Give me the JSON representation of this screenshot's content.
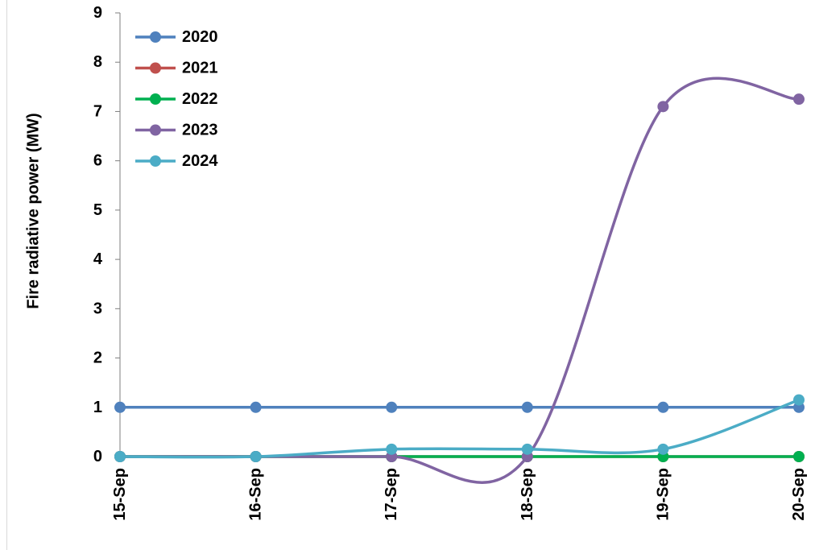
{
  "chart_data": {
    "type": "line",
    "title": "",
    "xlabel": "",
    "ylabel": "Fire radiative power (MW)",
    "categories": [
      "15-Sep",
      "16-Sep",
      "17-Sep",
      "18-Sep",
      "19-Sep",
      "20-Sep"
    ],
    "ylim": [
      0,
      9
    ],
    "yticks": [
      0,
      1,
      2,
      3,
      4,
      5,
      6,
      7,
      8,
      9
    ],
    "grid": false,
    "legend_position": "top-left",
    "smooth": true,
    "series": [
      {
        "name": "2020",
        "color": "#4f81bd",
        "values": [
          1,
          1,
          1,
          1,
          1,
          1
        ]
      },
      {
        "name": "2021",
        "color": "#c0504d",
        "values": [
          0,
          0,
          0,
          0,
          0,
          0
        ]
      },
      {
        "name": "2022",
        "color": "#00b050",
        "values": [
          0,
          0,
          0,
          0,
          0,
          0
        ]
      },
      {
        "name": "2023",
        "color": "#8064a2",
        "values": [
          0,
          0,
          0,
          0,
          7.1,
          7.25
        ]
      },
      {
        "name": "2024",
        "color": "#4bacc6",
        "values": [
          0,
          0,
          0.15,
          0.15,
          0.15,
          1.15
        ]
      }
    ]
  }
}
